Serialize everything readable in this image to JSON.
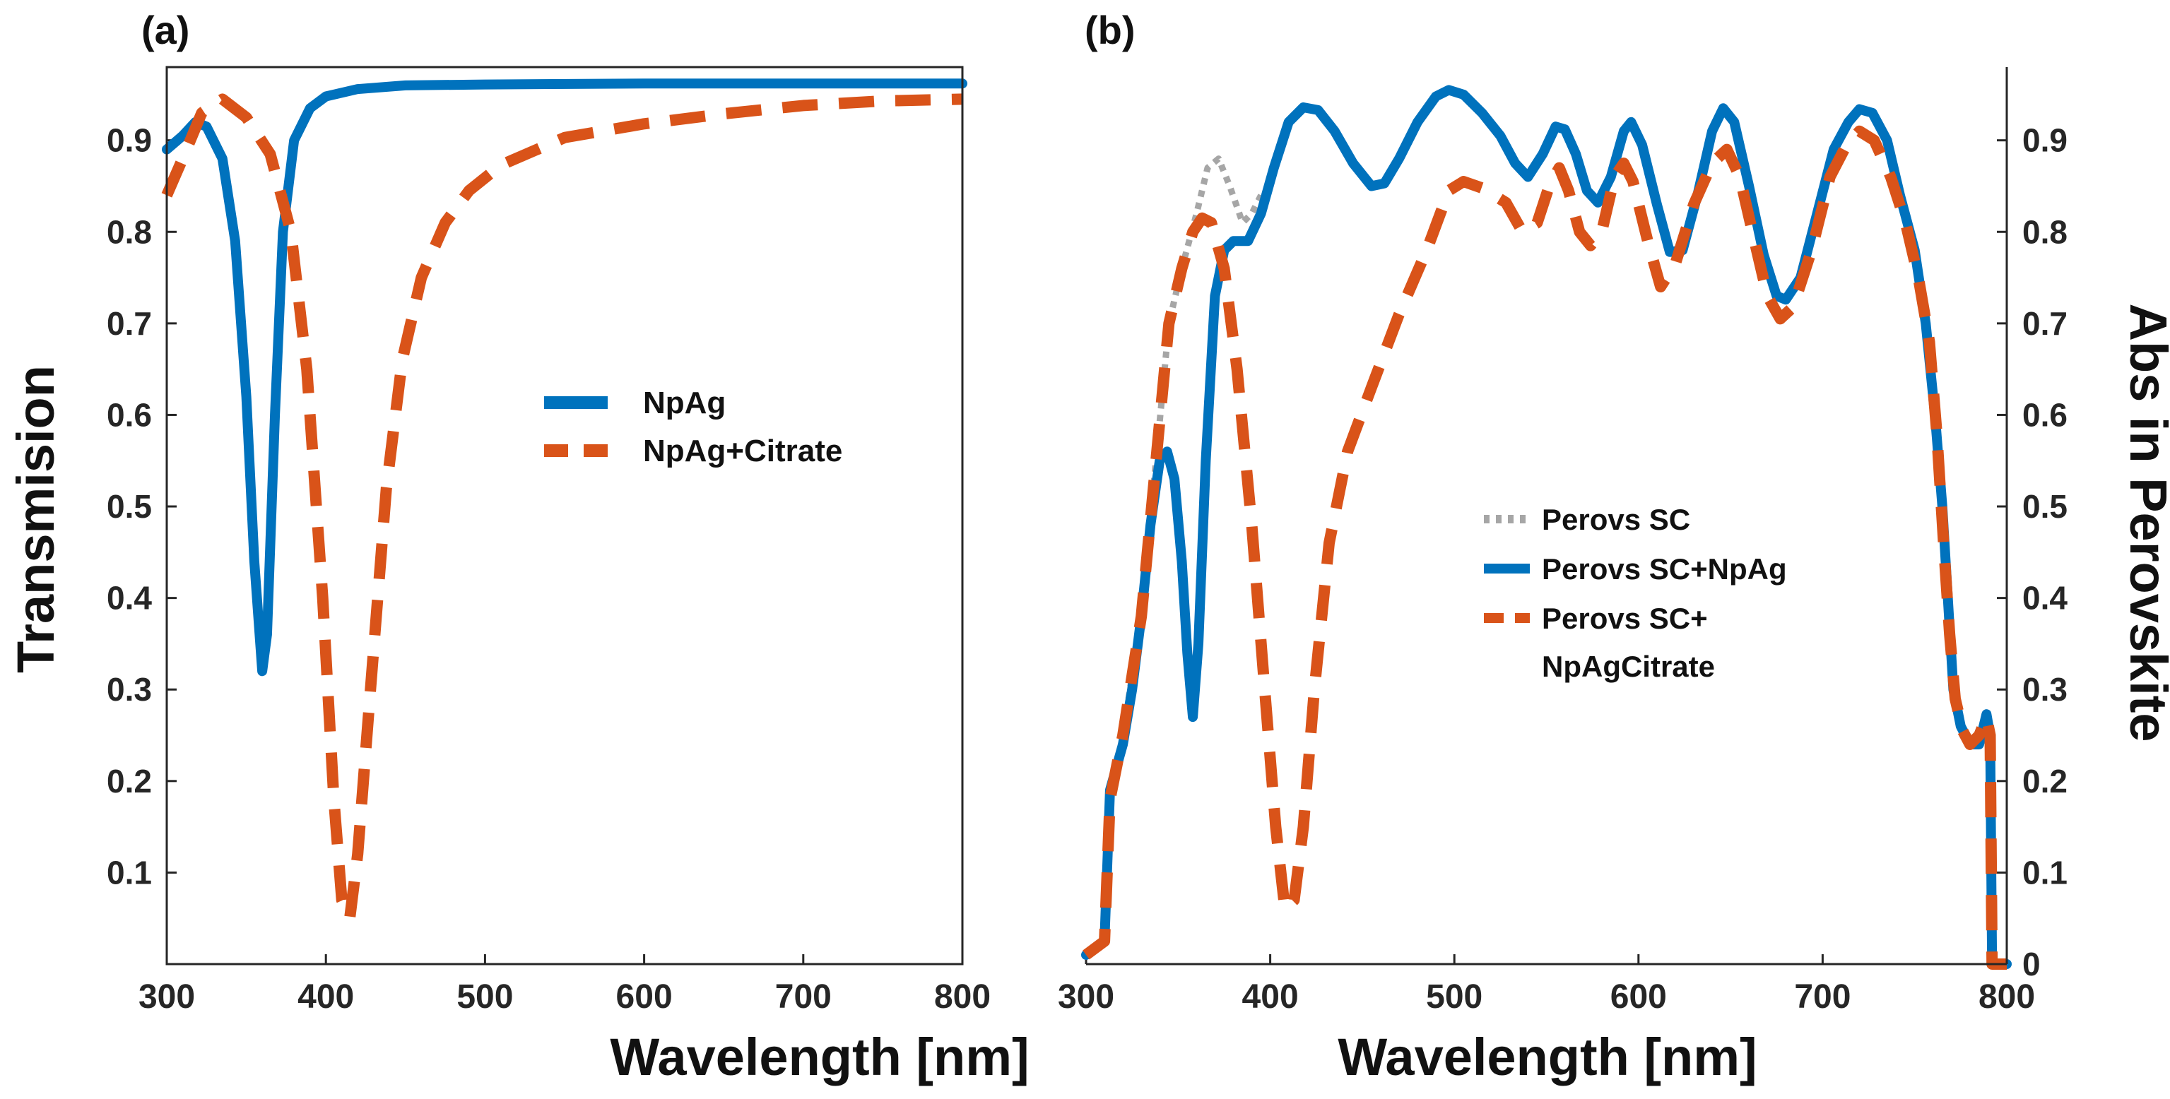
{
  "chart_data": [
    {
      "panel_label": "(a)",
      "type": "line",
      "xlabel": "Wavelength [nm]",
      "ylabel": "Transmision",
      "xlim": [
        300,
        800
      ],
      "ylim": [
        0,
        0.98
      ],
      "xticks": [
        "300",
        "400",
        "500",
        "600",
        "700",
        "800"
      ],
      "yticks": [
        "0.1",
        "0.2",
        "0.3",
        "0.4",
        "0.5",
        "0.6",
        "0.7",
        "0.8",
        "0.9"
      ],
      "legend_position": "center-right",
      "series": [
        {
          "name": "NpAg",
          "color": "#0072bd",
          "style": "solid",
          "points": [
            [
              300,
              0.89
            ],
            [
              310,
              0.905
            ],
            [
              318,
              0.92
            ],
            [
              325,
              0.915
            ],
            [
              335,
              0.88
            ],
            [
              343,
              0.79
            ],
            [
              350,
              0.62
            ],
            [
              355,
              0.44
            ],
            [
              360,
              0.32
            ],
            [
              363,
              0.36
            ],
            [
              368,
              0.6
            ],
            [
              373,
              0.8
            ],
            [
              380,
              0.9
            ],
            [
              390,
              0.935
            ],
            [
              400,
              0.948
            ],
            [
              420,
              0.956
            ],
            [
              450,
              0.96
            ],
            [
              500,
              0.961
            ],
            [
              600,
              0.962
            ],
            [
              700,
              0.962
            ],
            [
              800,
              0.962
            ]
          ]
        },
        {
          "name": "NpAg+Citrate",
          "color": "#d95319",
          "style": "dashed",
          "points": [
            [
              300,
              0.84
            ],
            [
              310,
              0.88
            ],
            [
              322,
              0.93
            ],
            [
              335,
              0.945
            ],
            [
              350,
              0.925
            ],
            [
              365,
              0.885
            ],
            [
              378,
              0.8
            ],
            [
              388,
              0.65
            ],
            [
              398,
              0.4
            ],
            [
              405,
              0.18
            ],
            [
              410,
              0.07
            ],
            [
              415,
              0.05
            ],
            [
              420,
              0.12
            ],
            [
              428,
              0.3
            ],
            [
              438,
              0.52
            ],
            [
              448,
              0.66
            ],
            [
              460,
              0.75
            ],
            [
              475,
              0.81
            ],
            [
              490,
              0.845
            ],
            [
              510,
              0.873
            ],
            [
              550,
              0.903
            ],
            [
              600,
              0.918
            ],
            [
              650,
              0.929
            ],
            [
              700,
              0.938
            ],
            [
              750,
              0.943
            ],
            [
              800,
              0.945
            ]
          ]
        }
      ]
    },
    {
      "panel_label": "(b)",
      "type": "line",
      "xlabel": "Wavelength [nm]",
      "ylabel": "Abs in Perovskite",
      "xlim": [
        300,
        800
      ],
      "ylim": [
        0,
        0.98
      ],
      "xticks": [
        "300",
        "400",
        "500",
        "600",
        "700",
        "800"
      ],
      "yticks": [
        "0",
        "0.1",
        "0.2",
        "0.3",
        "0.4",
        "0.5",
        "0.6",
        "0.7",
        "0.8",
        "0.9"
      ],
      "yaxis_side": "right",
      "legend_position": "center-right",
      "series": [
        {
          "name": "Perovs SC",
          "color": "#a6a6a6",
          "style": "dotted",
          "points": [
            [
              300,
              0.01
            ],
            [
              310,
              0.025
            ],
            [
              313,
              0.18
            ],
            [
              320,
              0.25
            ],
            [
              330,
              0.38
            ],
            [
              338,
              0.55
            ],
            [
              345,
              0.7
            ],
            [
              352,
              0.76
            ],
            [
              360,
              0.82
            ],
            [
              366,
              0.87
            ],
            [
              372,
              0.88
            ],
            [
              378,
              0.85
            ],
            [
              385,
              0.81
            ],
            [
              390,
              0.82
            ],
            [
              395,
              0.84
            ]
          ]
        },
        {
          "name": "Perovs SC+NpAg",
          "color": "#0072bd",
          "style": "solid",
          "points": [
            [
              300,
              0.01
            ],
            [
              310,
              0.025
            ],
            [
              313,
              0.19
            ],
            [
              320,
              0.24
            ],
            [
              325,
              0.3
            ],
            [
              330,
              0.38
            ],
            [
              335,
              0.48
            ],
            [
              340,
              0.55
            ],
            [
              344,
              0.56
            ],
            [
              348,
              0.53
            ],
            [
              352,
              0.44
            ],
            [
              355,
              0.34
            ],
            [
              358,
              0.27
            ],
            [
              361,
              0.35
            ],
            [
              365,
              0.55
            ],
            [
              370,
              0.73
            ],
            [
              375,
              0.78
            ],
            [
              380,
              0.79
            ],
            [
              388,
              0.79
            ],
            [
              395,
              0.82
            ],
            [
              402,
              0.87
            ],
            [
              410,
              0.92
            ],
            [
              418,
              0.936
            ],
            [
              426,
              0.933
            ],
            [
              435,
              0.91
            ],
            [
              445,
              0.875
            ],
            [
              455,
              0.85
            ],
            [
              462,
              0.853
            ],
            [
              470,
              0.88
            ],
            [
              480,
              0.92
            ],
            [
              490,
              0.948
            ],
            [
              497,
              0.955
            ],
            [
              505,
              0.95
            ],
            [
              515,
              0.93
            ],
            [
              525,
              0.905
            ],
            [
              533,
              0.875
            ],
            [
              540,
              0.86
            ],
            [
              548,
              0.885
            ],
            [
              555,
              0.915
            ],
            [
              560,
              0.912
            ],
            [
              566,
              0.885
            ],
            [
              572,
              0.845
            ],
            [
              578,
              0.832
            ],
            [
              585,
              0.86
            ],
            [
              592,
              0.91
            ],
            [
              596,
              0.92
            ],
            [
              602,
              0.895
            ],
            [
              610,
              0.83
            ],
            [
              617,
              0.778
            ],
            [
              624,
              0.78
            ],
            [
              632,
              0.84
            ],
            [
              640,
              0.91
            ],
            [
              646,
              0.935
            ],
            [
              652,
              0.92
            ],
            [
              660,
              0.85
            ],
            [
              668,
              0.775
            ],
            [
              675,
              0.73
            ],
            [
              680,
              0.726
            ],
            [
              688,
              0.75
            ],
            [
              697,
              0.82
            ],
            [
              706,
              0.89
            ],
            [
              714,
              0.92
            ],
            [
              720,
              0.934
            ],
            [
              727,
              0.93
            ],
            [
              735,
              0.9
            ],
            [
              742,
              0.84
            ],
            [
              750,
              0.78
            ],
            [
              756,
              0.7
            ],
            [
              761,
              0.6
            ],
            [
              765,
              0.5
            ],
            [
              768,
              0.4
            ],
            [
              771,
              0.3
            ],
            [
              775,
              0.26
            ],
            [
              780,
              0.24
            ],
            [
              785,
              0.24
            ],
            [
              789,
              0.273
            ],
            [
              791,
              0.25
            ],
            [
              792,
              0.0
            ],
            [
              800,
              0.0
            ]
          ]
        },
        {
          "name": "Perovs SC+ NpAgCitrate",
          "color": "#d95319",
          "style": "dashed",
          "points": [
            [
              300,
              0.01
            ],
            [
              310,
              0.025
            ],
            [
              313,
              0.18
            ],
            [
              320,
              0.25
            ],
            [
              330,
              0.38
            ],
            [
              338,
              0.55
            ],
            [
              345,
              0.7
            ],
            [
              352,
              0.76
            ],
            [
              358,
              0.8
            ],
            [
              363,
              0.815
            ],
            [
              368,
              0.81
            ],
            [
              375,
              0.76
            ],
            [
              382,
              0.65
            ],
            [
              390,
              0.48
            ],
            [
              397,
              0.3
            ],
            [
              403,
              0.15
            ],
            [
              408,
              0.06
            ],
            [
              413,
              0.07
            ],
            [
              418,
              0.15
            ],
            [
              424,
              0.3
            ],
            [
              432,
              0.46
            ],
            [
              442,
              0.56
            ],
            [
              455,
              0.63
            ],
            [
              470,
              0.71
            ],
            [
              485,
              0.78
            ],
            [
              497,
              0.845
            ],
            [
              505,
              0.855
            ],
            [
              515,
              0.848
            ],
            [
              528,
              0.832
            ],
            [
              537,
              0.8
            ],
            [
              545,
              0.81
            ],
            [
              552,
              0.853
            ],
            [
              557,
              0.87
            ],
            [
              562,
              0.845
            ],
            [
              568,
              0.8
            ],
            [
              574,
              0.785
            ],
            [
              580,
              0.8
            ],
            [
              587,
              0.86
            ],
            [
              592,
              0.875
            ],
            [
              597,
              0.855
            ],
            [
              605,
              0.79
            ],
            [
              612,
              0.74
            ],
            [
              620,
              0.765
            ],
            [
              630,
              0.83
            ],
            [
              640,
              0.875
            ],
            [
              648,
              0.89
            ],
            [
              655,
              0.86
            ],
            [
              663,
              0.79
            ],
            [
              670,
              0.73
            ],
            [
              677,
              0.705
            ],
            [
              684,
              0.718
            ],
            [
              694,
              0.78
            ],
            [
              704,
              0.86
            ],
            [
              713,
              0.895
            ],
            [
              720,
              0.91
            ],
            [
              728,
              0.9
            ],
            [
              737,
              0.86
            ],
            [
              745,
              0.81
            ],
            [
              752,
              0.75
            ],
            [
              758,
              0.68
            ],
            [
              762,
              0.58
            ],
            [
              766,
              0.45
            ],
            [
              769,
              0.36
            ],
            [
              772,
              0.29
            ],
            [
              776,
              0.255
            ],
            [
              780,
              0.24
            ],
            [
              785,
              0.25
            ],
            [
              789,
              0.27
            ],
            [
              791,
              0.25
            ],
            [
              792,
              0.0
            ],
            [
              800,
              0.0
            ]
          ]
        }
      ]
    }
  ]
}
